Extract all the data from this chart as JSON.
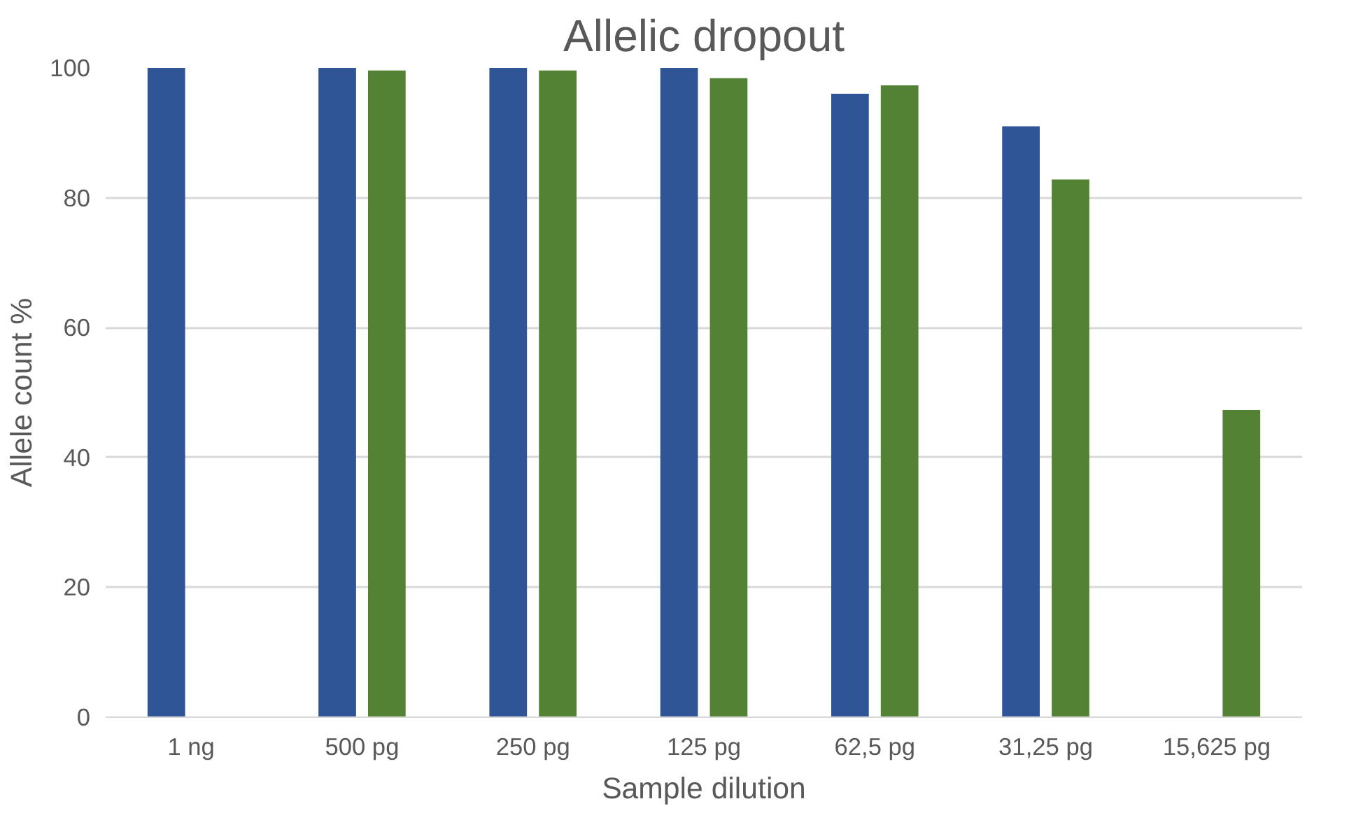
{
  "chart_data": {
    "type": "bar",
    "title": "Allelic dropout",
    "xlabel": "Sample dilution",
    "ylabel": "Allele count %",
    "categories": [
      "1 ng",
      "500 pg",
      "250 pg",
      "125 pg",
      "62,5 pg",
      "31,25 pg",
      "15,625 pg"
    ],
    "series": [
      {
        "color": "#2f5597",
        "values": [
          100,
          100,
          100,
          100,
          96.0,
          91.0,
          null
        ]
      },
      {
        "color": "#548235",
        "values": [
          null,
          99.6,
          99.6,
          98.4,
          97.3,
          82.8,
          47.3
        ]
      }
    ],
    "ylim": [
      0,
      100
    ],
    "yticks": [
      0,
      20,
      40,
      60,
      80,
      100
    ],
    "grid": "y"
  }
}
